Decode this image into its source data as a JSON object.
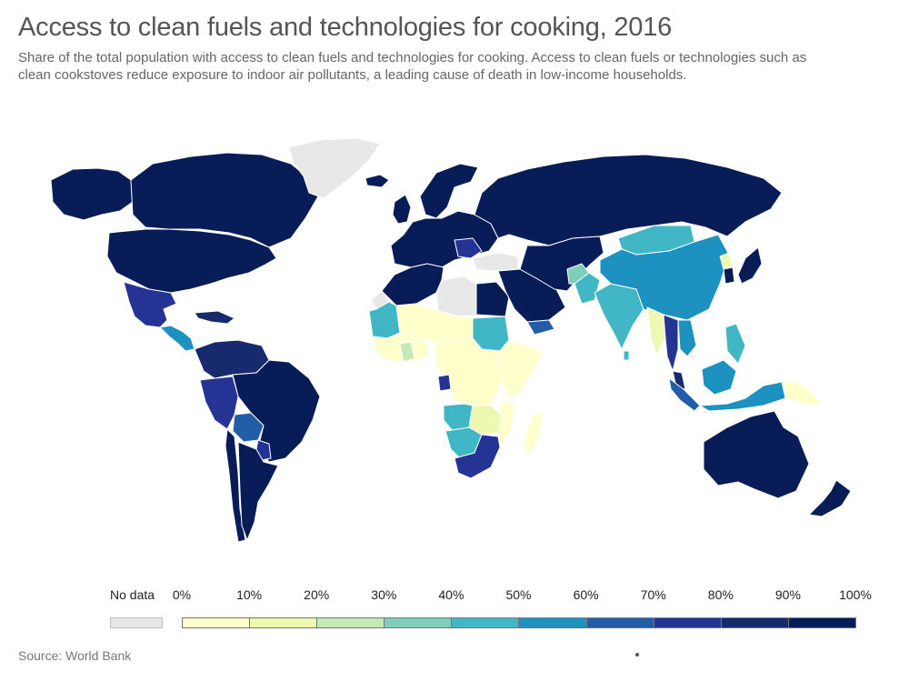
{
  "title": "Access to clean fuels and technologies for cooking, 2016",
  "subtitle": "Share of the total population with access to clean fuels and technologies for cooking. Access to clean fuels or technologies such as clean cookstoves reduce exposure to indoor air pollutants, a leading cause of death in low-income households.",
  "source": "Source: World Bank",
  "legend": {
    "no_data_label": "No data",
    "no_data_color": "#e8e8e8",
    "bins": [
      {
        "label": "0%",
        "color": "#ffffcc"
      },
      {
        "label": "10%",
        "color": "#edf8b1"
      },
      {
        "label": "20%",
        "color": "#c7e9b4"
      },
      {
        "label": "30%",
        "color": "#7fcdbb"
      },
      {
        "label": "40%",
        "color": "#41b6c4"
      },
      {
        "label": "50%",
        "color": "#1d91c0"
      },
      {
        "label": "60%",
        "color": "#225ea8"
      },
      {
        "label": "70%",
        "color": "#253494"
      },
      {
        "label": "80%",
        "color": "#172a6e"
      },
      {
        "label": "90%",
        "color": "#081d58"
      }
    ],
    "end_label": "100%"
  },
  "map_regions": [
    {
      "id": "alaska",
      "bin": 9
    },
    {
      "id": "canada",
      "bin": 9
    },
    {
      "id": "greenland",
      "bin": -1
    },
    {
      "id": "usa",
      "bin": 9
    },
    {
      "id": "mexico",
      "bin": 7
    },
    {
      "id": "central-america",
      "bin": 5
    },
    {
      "id": "caribbean",
      "bin": 8
    },
    {
      "id": "colombia-venezuela",
      "bin": 8
    },
    {
      "id": "brazil",
      "bin": 9
    },
    {
      "id": "peru",
      "bin": 7
    },
    {
      "id": "bolivia",
      "bin": 6
    },
    {
      "id": "paraguay",
      "bin": 7
    },
    {
      "id": "chile",
      "bin": 9
    },
    {
      "id": "argentina",
      "bin": 9
    },
    {
      "id": "europe",
      "bin": 9
    },
    {
      "id": "scandinavia",
      "bin": 9
    },
    {
      "id": "uk-ireland",
      "bin": 9
    },
    {
      "id": "iceland",
      "bin": 9
    },
    {
      "id": "balkans",
      "bin": 7
    },
    {
      "id": "russia",
      "bin": 9
    },
    {
      "id": "turkey",
      "bin": -1
    },
    {
      "id": "north-africa",
      "bin": 9
    },
    {
      "id": "libya",
      "bin": -1
    },
    {
      "id": "egypt",
      "bin": 9
    },
    {
      "id": "western-sahara",
      "bin": -1
    },
    {
      "id": "mauritania-mali",
      "bin": 4
    },
    {
      "id": "sahel",
      "bin": 0
    },
    {
      "id": "west-africa",
      "bin": 0
    },
    {
      "id": "ghana-nigeria-band",
      "bin": 2
    },
    {
      "id": "sudan",
      "bin": 4
    },
    {
      "id": "east-africa",
      "bin": 0
    },
    {
      "id": "central-africa",
      "bin": 0
    },
    {
      "id": "gabon",
      "bin": 7
    },
    {
      "id": "angola",
      "bin": 4
    },
    {
      "id": "namibia-botswana",
      "bin": 4
    },
    {
      "id": "zambia-zimbabwe",
      "bin": 1
    },
    {
      "id": "mozambique",
      "bin": 0
    },
    {
      "id": "south-africa",
      "bin": 7
    },
    {
      "id": "madagascar",
      "bin": 0
    },
    {
      "id": "middle-east",
      "bin": 9
    },
    {
      "id": "yemen",
      "bin": 6
    },
    {
      "id": "iran-central-asia",
      "bin": 9
    },
    {
      "id": "afghanistan",
      "bin": 3
    },
    {
      "id": "pakistan",
      "bin": 4
    },
    {
      "id": "india",
      "bin": 4
    },
    {
      "id": "sri-lanka",
      "bin": 4
    },
    {
      "id": "mongolia",
      "bin": 4
    },
    {
      "id": "china",
      "bin": 5
    },
    {
      "id": "korea",
      "bin": 9
    },
    {
      "id": "north-korea",
      "bin": 1
    },
    {
      "id": "japan",
      "bin": 9
    },
    {
      "id": "myanmar",
      "bin": 1
    },
    {
      "id": "thailand",
      "bin": 7
    },
    {
      "id": "vietnam",
      "bin": 5
    },
    {
      "id": "philippines",
      "bin": 4
    },
    {
      "id": "malaysia",
      "bin": 8
    },
    {
      "id": "sumatra",
      "bin": 6
    },
    {
      "id": "borneo",
      "bin": 5
    },
    {
      "id": "indonesia-east",
      "bin": 5
    },
    {
      "id": "papua-new-guinea",
      "bin": 0
    },
    {
      "id": "australia",
      "bin": 9
    },
    {
      "id": "new-zealand",
      "bin": 9
    }
  ]
}
